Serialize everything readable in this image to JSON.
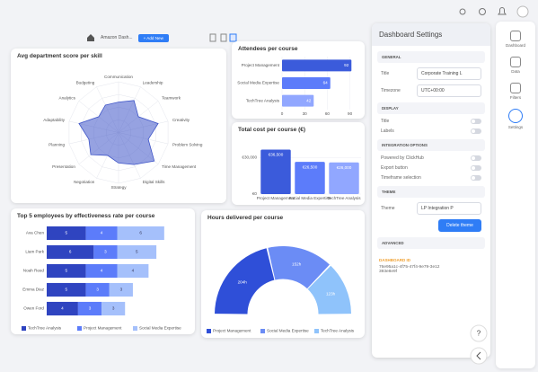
{
  "toolbar": {
    "dashboard_name": "Amazon Dash...",
    "add_button": "+ Add New"
  },
  "chart_data": [
    {
      "type": "radar",
      "title": "Avg department score per skill",
      "categories": [
        "Communication",
        "Leadership",
        "Teamwork",
        "Creativity",
        "Problem Solving",
        "Time Management",
        "Digital Skills",
        "Strategy",
        "Negotiation",
        "Presentation",
        "Planning",
        "Adaptability",
        "Analytics",
        "Budgeting"
      ],
      "values": [
        6,
        7,
        5,
        8,
        6,
        9,
        7,
        6,
        5,
        7,
        6,
        8,
        5,
        6
      ],
      "ylim": [
        0,
        10
      ],
      "color": "#3f55c8",
      "grid": true
    },
    {
      "type": "bar",
      "orientation": "horizontal",
      "title": "Attendees per course",
      "categories": [
        "Project Management",
        "Social Media Expertise",
        "TechTree Analysis"
      ],
      "values": [
        92,
        64,
        42
      ],
      "colors": [
        "#3b5bdb",
        "#5c7cfa",
        "#91a7ff"
      ],
      "xlim": [
        0,
        100
      ],
      "xticks": [
        0,
        30,
        60,
        90
      ],
      "grid": true
    },
    {
      "type": "bar",
      "title": "Total cost per course (€)",
      "categories": [
        "Project Management",
        "Social Media Expertise",
        "TechTree Analysis"
      ],
      "values": [
        36500,
        26500,
        26000
      ],
      "value_labels": [
        "€36,500",
        "€26,500",
        "€26,000"
      ],
      "colors": [
        "#3b5bdb",
        "#5c7cfa",
        "#91a7ff"
      ],
      "ylim": [
        0,
        45000
      ],
      "yticks": [
        {
          "value": 0,
          "label": "€0"
        },
        {
          "value": 30000,
          "label": "€30,000"
        }
      ],
      "grid": true
    },
    {
      "type": "bar",
      "orientation": "horizontal",
      "stacked": true,
      "title": "Top 5 employees by effectiveness rate per course",
      "categories": [
        "Ava Chen",
        "Liam Park",
        "Noah Reed",
        "Emma Diaz",
        "Owen Ford"
      ],
      "series": [
        {
          "name": "TechTree Analysis",
          "color": "#2f44c0",
          "values": [
            5,
            6,
            5,
            5,
            4
          ]
        },
        {
          "name": "Project Management",
          "color": "#5c7cfa",
          "values": [
            4,
            3,
            4,
            3,
            3
          ]
        },
        {
          "name": "Social Media Expertise",
          "color": "#a5c0fb",
          "values": [
            6,
            5,
            4,
            3,
            3
          ]
        }
      ],
      "xlim": [
        0,
        18
      ]
    },
    {
      "type": "pie",
      "semicircle": true,
      "title": "Hours delivered per course",
      "categories": [
        "Project Management",
        "Social Media Expertise",
        "TechTree Analysis"
      ],
      "values": [
        204,
        152,
        123
      ],
      "value_labels": [
        "204h",
        "152h",
        "123h"
      ],
      "colors": [
        "#2f4fd8",
        "#6b8cf5",
        "#8fc3fb"
      ]
    }
  ],
  "settings": {
    "title": "Dashboard Settings",
    "sections": [
      {
        "heading": "GENERAL",
        "fields": [
          {
            "label": "Title",
            "value": "Corporate Training L"
          },
          {
            "label": "Timezone",
            "value": "UTC+00:00"
          }
        ]
      },
      {
        "heading": "DISPLAY",
        "toggles": [
          "Title",
          "Labels"
        ]
      },
      {
        "heading": "INTEGRATION OPTIONS",
        "toggles": [
          "Powered by ClickHub",
          "Export button",
          "Timeframe selection"
        ]
      },
      {
        "heading": "THEME",
        "fields": [
          {
            "label": "Theme",
            "value": "LP Integration P"
          }
        ],
        "button": "Delete theme"
      },
      {
        "heading": "ADVANCED"
      }
    ],
    "id_label": "DASHBOARD ID",
    "id_value": "76e95a1c-4f75-47f4-9e79-3e12393e8e9f"
  },
  "sidebar": {
    "items": [
      "Dashboard",
      "Data",
      "Filters",
      "Settings"
    ],
    "active_index": 3
  },
  "help_button": "?"
}
